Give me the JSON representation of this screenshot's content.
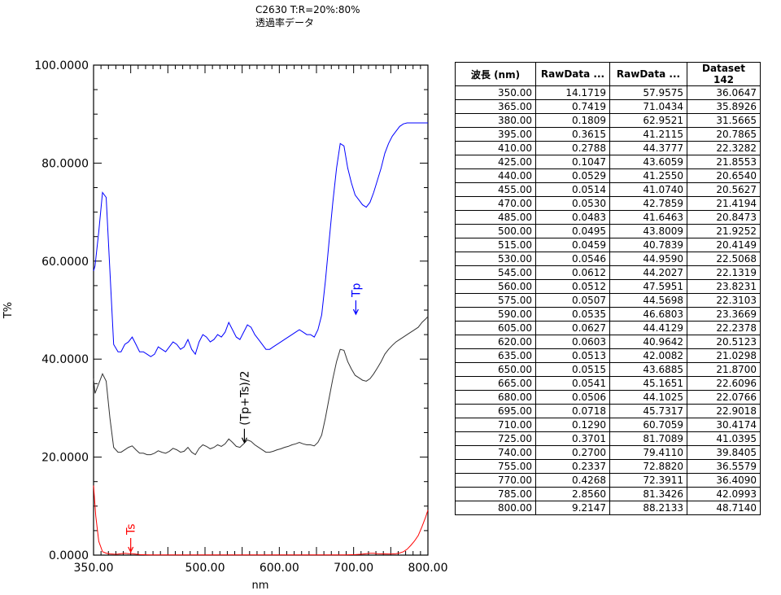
{
  "header": {
    "line1": "C2630 T:R=20%:80%",
    "line2": "透過率データ"
  },
  "chart_data": {
    "type": "line",
    "xlabel": "nm",
    "ylabel": "T%",
    "xlim": [
      350,
      800
    ],
    "ylim": [
      0,
      100
    ],
    "xticks": [
      "350.00",
      "500.00",
      "600.00",
      "700.00",
      "800.00"
    ],
    "yticks": [
      "0.0000",
      "20.0000",
      "40.0000",
      "60.0000",
      "80.0000",
      "100.0000"
    ],
    "annotations": {
      "tp": "Tp",
      "avg": "(Tp+Ts)/2",
      "ts": "Ts"
    },
    "colors": {
      "tp": "#0000ff",
      "avg": "#333333",
      "ts": "#ff0000"
    },
    "series": [
      {
        "name": "Tp",
        "x": [
          350,
          352,
          357,
          362,
          367,
          372,
          377,
          383,
          387,
          392,
          397,
          402,
          407,
          412,
          417,
          422,
          427,
          432,
          437,
          442,
          447,
          452,
          457,
          462,
          467,
          472,
          477,
          482,
          487,
          492,
          497,
          502,
          507,
          512,
          517,
          522,
          527,
          532,
          537,
          542,
          547,
          552,
          557,
          562,
          567,
          572,
          577,
          582,
          587,
          592,
          597,
          602,
          607,
          612,
          617,
          622,
          627,
          632,
          637,
          642,
          647,
          652,
          657,
          662,
          667,
          672,
          677,
          682,
          687,
          692,
          697,
          702,
          707,
          712,
          717,
          722,
          727,
          732,
          737,
          742,
          747,
          752,
          757,
          762,
          767,
          772,
          777,
          782,
          787,
          792,
          797,
          800
        ],
        "y": [
          58,
          59,
          66,
          74,
          73,
          58,
          43,
          41.5,
          41.5,
          43,
          43.5,
          44.5,
          43,
          41.5,
          41.5,
          41,
          40.5,
          41,
          42.5,
          42,
          41.5,
          42.5,
          43.5,
          43,
          42,
          42.5,
          44,
          42,
          41,
          43.5,
          45,
          44.5,
          43.5,
          44,
          45,
          44.5,
          45.5,
          47.5,
          46,
          44.5,
          44,
          45.5,
          47,
          46.5,
          45,
          44,
          43,
          42,
          42,
          42.5,
          43,
          43.5,
          44,
          44.5,
          45,
          45.5,
          46,
          45.5,
          45,
          45,
          44.5,
          46,
          49,
          56,
          64,
          72,
          79,
          84,
          83.5,
          79,
          76,
          73.5,
          72.5,
          71.5,
          71,
          72,
          74,
          76.5,
          79,
          82,
          84,
          85.5,
          86.5,
          87.5,
          88,
          88.2,
          88.2,
          88.2,
          88.2,
          88.2,
          88.2,
          88.2
        ]
      },
      {
        "name": "(Tp+Ts)/2",
        "x": [
          350,
          352,
          357,
          362,
          367,
          372,
          377,
          383,
          387,
          392,
          397,
          402,
          407,
          412,
          417,
          422,
          427,
          432,
          437,
          442,
          447,
          452,
          457,
          462,
          467,
          472,
          477,
          482,
          487,
          492,
          497,
          502,
          507,
          512,
          517,
          522,
          527,
          532,
          537,
          542,
          547,
          552,
          557,
          562,
          567,
          572,
          577,
          582,
          587,
          592,
          597,
          602,
          607,
          612,
          617,
          622,
          627,
          632,
          637,
          642,
          647,
          652,
          657,
          662,
          667,
          672,
          677,
          682,
          687,
          692,
          697,
          702,
          707,
          712,
          717,
          722,
          727,
          732,
          737,
          742,
          747,
          752,
          757,
          762,
          767,
          772,
          777,
          782,
          787,
          792,
          797,
          800
        ],
        "y": [
          36,
          33,
          35,
          37,
          35.5,
          28,
          22,
          21,
          21,
          21.5,
          22,
          22.3,
          21.5,
          20.8,
          20.8,
          20.5,
          20.5,
          20.8,
          21.3,
          21,
          20.8,
          21.2,
          21.8,
          21.5,
          21,
          21.2,
          22,
          21,
          20.5,
          21.8,
          22.5,
          22.2,
          21.7,
          22,
          22.5,
          22.2,
          22.7,
          23.7,
          23,
          22.2,
          22,
          22.7,
          23.5,
          23.2,
          22.5,
          22,
          21.5,
          21,
          21,
          21.2,
          21.5,
          21.7,
          22,
          22.2,
          22.5,
          22.7,
          23,
          22.7,
          22.5,
          22.5,
          22.3,
          23,
          24.5,
          28,
          32,
          36,
          39.5,
          42,
          41.8,
          39.5,
          38,
          36.7,
          36.2,
          35.7,
          35.5,
          36,
          37,
          38.2,
          39.5,
          41,
          42,
          42.8,
          43.5,
          44,
          44.5,
          45,
          45.5,
          46,
          46.5,
          47.5,
          48.2,
          48.7
        ]
      },
      {
        "name": "Ts",
        "x": [
          350,
          353,
          357,
          362,
          367,
          372,
          377,
          382,
          387,
          392,
          397,
          402,
          407,
          412,
          417,
          422,
          427,
          432,
          437,
          442,
          447,
          452,
          457,
          462,
          467,
          472,
          477,
          482,
          487,
          492,
          497,
          502,
          507,
          512,
          517,
          522,
          527,
          532,
          537,
          542,
          547,
          552,
          557,
          562,
          567,
          572,
          577,
          582,
          587,
          592,
          597,
          602,
          607,
          612,
          617,
          622,
          627,
          632,
          637,
          642,
          647,
          652,
          657,
          662,
          667,
          672,
          677,
          682,
          687,
          692,
          697,
          702,
          707,
          712,
          717,
          722,
          727,
          732,
          737,
          742,
          747,
          752,
          757,
          762,
          767,
          772,
          777,
          782,
          787,
          792,
          797,
          800
        ],
        "y": [
          14.2,
          8,
          2.8,
          0.7,
          0.4,
          0.25,
          0.2,
          0.18,
          0.3,
          0.36,
          0.3,
          0.28,
          0.2,
          0.1,
          0.08,
          0.06,
          0.05,
          0.05,
          0.05,
          0.05,
          0.05,
          0.05,
          0.05,
          0.05,
          0.05,
          0.05,
          0.05,
          0.05,
          0.05,
          0.05,
          0.05,
          0.05,
          0.05,
          0.05,
          0.05,
          0.05,
          0.05,
          0.05,
          0.05,
          0.05,
          0.05,
          0.05,
          0.05,
          0.05,
          0.05,
          0.05,
          0.05,
          0.05,
          0.05,
          0.05,
          0.05,
          0.05,
          0.05,
          0.05,
          0.05,
          0.05,
          0.05,
          0.05,
          0.05,
          0.05,
          0.05,
          0.05,
          0.05,
          0.05,
          0.05,
          0.05,
          0.05,
          0.05,
          0.05,
          0.07,
          0.08,
          0.1,
          0.15,
          0.2,
          0.28,
          0.36,
          0.36,
          0.3,
          0.27,
          0.25,
          0.24,
          0.25,
          0.3,
          0.43,
          0.7,
          1.2,
          2,
          2.9,
          4,
          5.8,
          7.8,
          9.2
        ]
      }
    ]
  },
  "table": {
    "headers": [
      "波長 (nm)",
      "RawData ...",
      "RawData ...",
      "Dataset 142"
    ],
    "rows": [
      [
        "350.00",
        "14.1719",
        "57.9575",
        "36.0647"
      ],
      [
        "365.00",
        "0.7419",
        "71.0434",
        "35.8926"
      ],
      [
        "380.00",
        "0.1809",
        "62.9521",
        "31.5665"
      ],
      [
        "395.00",
        "0.3615",
        "41.2115",
        "20.7865"
      ],
      [
        "410.00",
        "0.2788",
        "44.3777",
        "22.3282"
      ],
      [
        "425.00",
        "0.1047",
        "43.6059",
        "21.8553"
      ],
      [
        "440.00",
        "0.0529",
        "41.2550",
        "20.6540"
      ],
      [
        "455.00",
        "0.0514",
        "41.0740",
        "20.5627"
      ],
      [
        "470.00",
        "0.0530",
        "42.7859",
        "21.4194"
      ],
      [
        "485.00",
        "0.0483",
        "41.6463",
        "20.8473"
      ],
      [
        "500.00",
        "0.0495",
        "43.8009",
        "21.9252"
      ],
      [
        "515.00",
        "0.0459",
        "40.7839",
        "20.4149"
      ],
      [
        "530.00",
        "0.0546",
        "44.9590",
        "22.5068"
      ],
      [
        "545.00",
        "0.0612",
        "44.2027",
        "22.1319"
      ],
      [
        "560.00",
        "0.0512",
        "47.5951",
        "23.8231"
      ],
      [
        "575.00",
        "0.0507",
        "44.5698",
        "22.3103"
      ],
      [
        "590.00",
        "0.0535",
        "46.6803",
        "23.3669"
      ],
      [
        "605.00",
        "0.0627",
        "44.4129",
        "22.2378"
      ],
      [
        "620.00",
        "0.0603",
        "40.9642",
        "20.5123"
      ],
      [
        "635.00",
        "0.0513",
        "42.0082",
        "21.0298"
      ],
      [
        "650.00",
        "0.0515",
        "43.6885",
        "21.8700"
      ],
      [
        "665.00",
        "0.0541",
        "45.1651",
        "22.6096"
      ],
      [
        "680.00",
        "0.0506",
        "44.1025",
        "22.0766"
      ],
      [
        "695.00",
        "0.0718",
        "45.7317",
        "22.9018"
      ],
      [
        "710.00",
        "0.1290",
        "60.7059",
        "30.4174"
      ],
      [
        "725.00",
        "0.3701",
        "81.7089",
        "41.0395"
      ],
      [
        "740.00",
        "0.2700",
        "79.4110",
        "39.8405"
      ],
      [
        "755.00",
        "0.2337",
        "72.8820",
        "36.5579"
      ],
      [
        "770.00",
        "0.4268",
        "72.3911",
        "36.4090"
      ],
      [
        "785.00",
        "2.8560",
        "81.3426",
        "42.0993"
      ],
      [
        "800.00",
        "9.2147",
        "88.2133",
        "48.7140"
      ]
    ]
  }
}
